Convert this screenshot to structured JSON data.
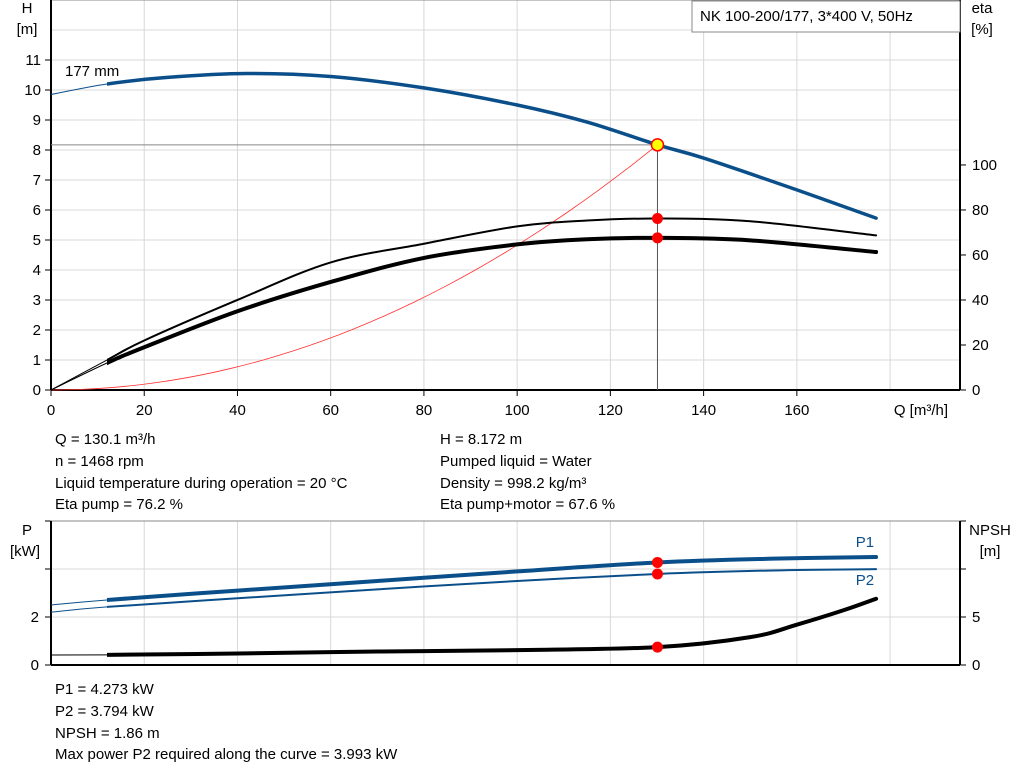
{
  "chart_data": [
    {
      "type": "line",
      "title": "NK 100-200/177, 3*400 V, 50Hz",
      "xlabel": "Q [m³/h]",
      "ylabel": "H\n[m]",
      "y2label": "eta\n[%]",
      "xlim": [
        0,
        195
      ],
      "ylim": [
        0,
        13
      ],
      "y2lim": [
        0,
        173.3
      ],
      "x_ticks": [
        0,
        20,
        40,
        60,
        80,
        100,
        120,
        140,
        160
      ],
      "y_ticks": [
        0,
        1,
        2,
        3,
        4,
        5,
        6,
        7,
        8,
        9,
        10,
        11
      ],
      "y2_ticks": [
        0,
        20,
        40,
        60,
        80,
        100
      ],
      "grid": true,
      "impeller_label": "177 mm",
      "series": [
        {
          "name": "H",
          "axis": "left",
          "color": "#0b4f8a",
          "x": [
            0,
            12,
            25,
            42,
            60,
            80,
            100,
            115,
            130.1,
            140,
            160,
            177
          ],
          "y": [
            9.85,
            10.2,
            10.42,
            10.55,
            10.45,
            10.07,
            9.5,
            8.93,
            8.172,
            7.73,
            6.67,
            5.73
          ]
        },
        {
          "name": "eta pump",
          "axis": "right",
          "color": "#000000",
          "x": [
            0,
            12,
            20,
            40,
            60,
            80,
            100,
            115,
            130.1,
            150,
            177
          ],
          "y": [
            0,
            13.3,
            22,
            40,
            56.7,
            65,
            72.7,
            75.3,
            76.2,
            75,
            68.7
          ]
        },
        {
          "name": "eta pump+motor",
          "axis": "right",
          "color": "#000000",
          "x": [
            0,
            12,
            20,
            40,
            60,
            80,
            100,
            115,
            130.1,
            150,
            177
          ],
          "y": [
            0,
            12,
            19,
            35,
            48,
            58.7,
            64.7,
            67,
            67.6,
            66.5,
            61.3
          ]
        },
        {
          "name": "system curve",
          "axis": "left",
          "color": "#ff3030",
          "x": [
            0,
            130.1
          ],
          "y": [
            0,
            8.172
          ]
        }
      ],
      "operating_point": {
        "Q": 130.1,
        "H": 8.172,
        "eta_pump": 76.2,
        "eta_pump_motor": 67.6
      }
    },
    {
      "type": "line",
      "ylabel": "P\n[kW]",
      "y2label": "NPSH\n[m]",
      "xlim": [
        0,
        195
      ],
      "ylim": [
        0,
        6
      ],
      "y2lim": [
        0,
        15
      ],
      "y_ticks": [
        0,
        2,
        4,
        6
      ],
      "y_tick_labels": [
        "0",
        "2",
        "",
        ""
      ],
      "y2_ticks": [
        0,
        5,
        10,
        15
      ],
      "y2_tick_labels": [
        "0",
        "5",
        "",
        ""
      ],
      "grid": true,
      "series": [
        {
          "name": "P1",
          "axis": "left",
          "color": "#0b4f8a",
          "x": [
            0,
            12,
            40,
            70,
            100,
            130.1,
            155,
            177
          ],
          "y": [
            2.5,
            2.71,
            3.1,
            3.5,
            3.9,
            4.273,
            4.43,
            4.5
          ]
        },
        {
          "name": "P2",
          "axis": "left",
          "color": "#0b4f8a",
          "x": [
            0,
            12,
            40,
            70,
            100,
            130.1,
            155,
            177
          ],
          "y": [
            2.2,
            2.42,
            2.78,
            3.15,
            3.5,
            3.794,
            3.94,
            3.993
          ]
        },
        {
          "name": "NPSH",
          "axis": "right",
          "color": "#000000",
          "x": [
            0,
            12,
            40,
            70,
            100,
            130.1,
            150,
            160,
            170,
            177
          ],
          "y": [
            1.04,
            1.06,
            1.2,
            1.4,
            1.55,
            1.86,
            2.9,
            4.2,
            5.7,
            6.9
          ]
        }
      ],
      "operating_point": {
        "P1": 4.273,
        "P2": 3.794,
        "NPSH": 1.86
      }
    }
  ],
  "info_top_left": [
    "Q = 130.1 m³/h",
    "n = 1468 rpm",
    "Liquid temperature during operation = 20 °C",
    "Eta pump = 76.2 %"
  ],
  "info_top_right": [
    "H = 8.172 m",
    "Pumped liquid = Water",
    "Density = 998.2 kg/m³",
    "Eta pump+motor = 67.6 %"
  ],
  "info_bottom": [
    "P1 = 4.273 kW",
    "P2 = 3.794 kW",
    "NPSH = 1.86 m",
    "Max power P2 required along the curve = 3.993 kW"
  ]
}
